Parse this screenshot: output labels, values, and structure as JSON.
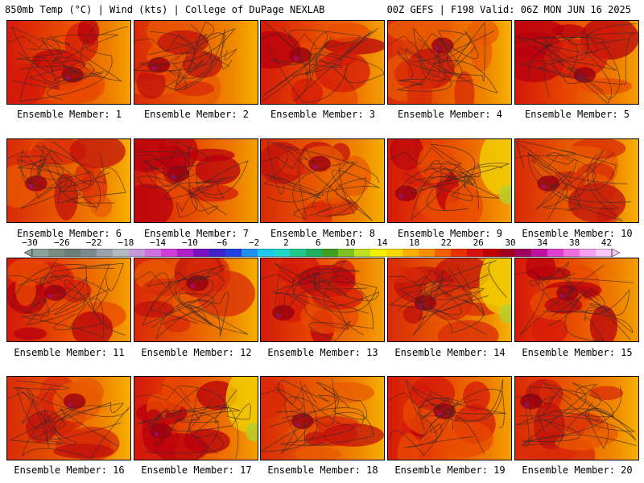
{
  "header": {
    "left": "850mb Temp (°C) | Wind (kts) | College of DuPage NEXLAB",
    "right": "00Z GEFS | F198 Valid: 06Z MON JUN 16 2025"
  },
  "panels": [
    {
      "label": "Ensemble Member: 1"
    },
    {
      "label": "Ensemble Member: 2"
    },
    {
      "label": "Ensemble Member: 3"
    },
    {
      "label": "Ensemble Member: 4"
    },
    {
      "label": "Ensemble Member: 5"
    },
    {
      "label": "Ensemble Member: 6"
    },
    {
      "label": "Ensemble Member: 7"
    },
    {
      "label": "Ensemble Member: 8"
    },
    {
      "label": "Ensemble Member: 9"
    },
    {
      "label": "Ensemble Member: 10"
    },
    {
      "label": "Ensemble Member: 11"
    },
    {
      "label": "Ensemble Member: 12"
    },
    {
      "label": "Ensemble Member: 13"
    },
    {
      "label": "Ensemble Member: 14"
    },
    {
      "label": "Ensemble Member: 15"
    },
    {
      "label": "Ensemble Member: 16"
    },
    {
      "label": "Ensemble Member: 17"
    },
    {
      "label": "Ensemble Member: 18"
    },
    {
      "label": "Ensemble Member: 19"
    },
    {
      "label": "Ensemble Member: 20"
    }
  ],
  "colorbar": {
    "labels": [
      "−30",
      "−26",
      "−22",
      "−18",
      "−14",
      "−10",
      "−6",
      "−2",
      "2",
      "6",
      "10",
      "14",
      "18",
      "22",
      "26",
      "30",
      "34",
      "38",
      "42"
    ],
    "colors": [
      "#8aa39a",
      "#7a8d85",
      "#6c7d76",
      "#7d8a8f",
      "#9aa3ab",
      "#b3bac2",
      "#c49ad8",
      "#d070e0",
      "#d040d8",
      "#b020c8",
      "#7a10c0",
      "#4020c8",
      "#2040e0",
      "#2090f0",
      "#20c8f0",
      "#20d8c8",
      "#20c890",
      "#20b060",
      "#40a020",
      "#80c020",
      "#c0e020",
      "#f0f000",
      "#f8d800",
      "#f8b000",
      "#f89000",
      "#f06000",
      "#e83000",
      "#d81010",
      "#c00000",
      "#a00020",
      "#a00060",
      "#c010a0",
      "#e040d0",
      "#f070e0",
      "#f8a0f0",
      "#f8c8f8"
    ]
  }
}
